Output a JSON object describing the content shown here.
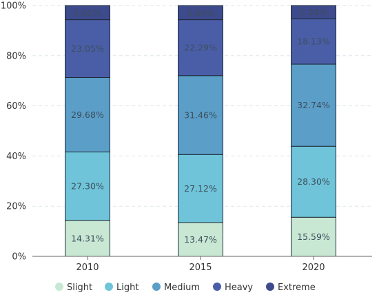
{
  "chart_data": {
    "type": "bar",
    "stacked": true,
    "categories": [
      "2010",
      "2015",
      "2020"
    ],
    "series": [
      {
        "name": "Slight",
        "color": "#c8e8d4",
        "values": [
          14.31,
          13.47,
          15.59
        ]
      },
      {
        "name": "Light",
        "color": "#6fc4d9",
        "values": [
          27.3,
          27.12,
          28.3
        ]
      },
      {
        "name": "Medium",
        "color": "#5b9ec8",
        "values": [
          29.68,
          31.46,
          32.74
        ]
      },
      {
        "name": "Heavy",
        "color": "#4a5ea8",
        "values": [
          23.05,
          22.29,
          18.13
        ]
      },
      {
        "name": "Extreme",
        "color": "#3d4a8c",
        "values": [
          5.65,
          5.64,
          5.24
        ]
      }
    ],
    "data_labels": [
      [
        "14.31%",
        "13.47%",
        "15.59%"
      ],
      [
        "27.30%",
        "27.12%",
        "28.30%"
      ],
      [
        "29.68%",
        "31.46%",
        "32.74%"
      ],
      [
        "23.05%",
        "22.29%",
        "18.13%"
      ],
      [
        "5.65%",
        "5.64%",
        "5.24%"
      ]
    ],
    "yticks": [
      "0%",
      "20%",
      "40%",
      "60%",
      "80%",
      "100%"
    ],
    "ylim": [
      0,
      100
    ],
    "grid": true,
    "legend": "bottom"
  }
}
